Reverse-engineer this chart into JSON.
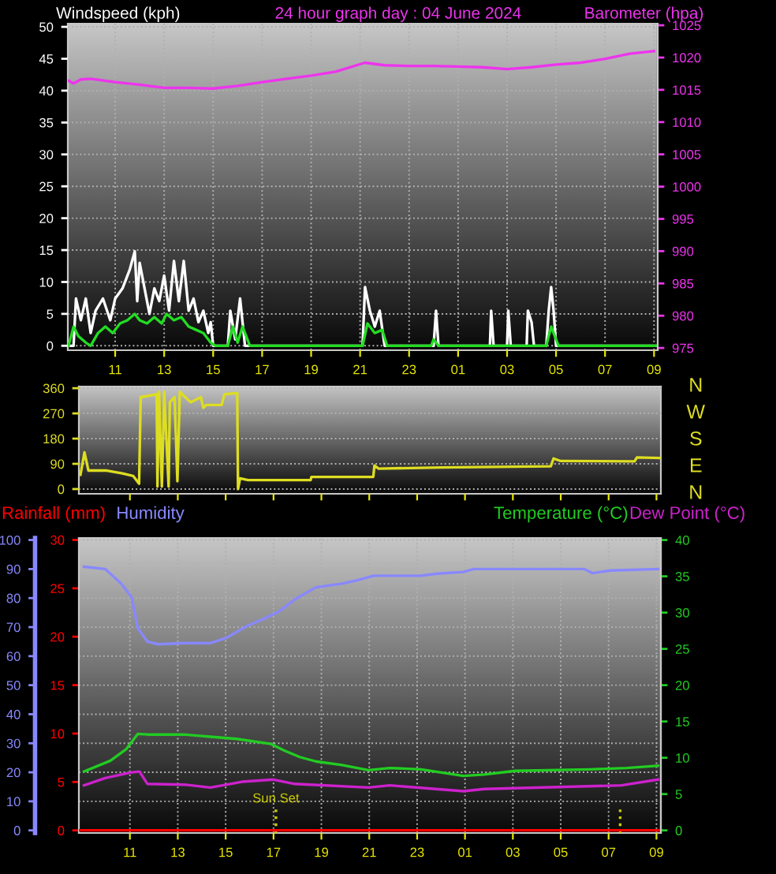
{
  "chart_data": [
    {
      "type": "line",
      "title": "24 hour graph day : 04 June 2024",
      "ylabel": "Windspeed (kph)",
      "y2label": "Barometer (hpa)",
      "xlim": [
        "2024-06-04T09:04",
        "2024-06-05T09:09"
      ],
      "xticks": [
        {
          "value": "2024-06-04T11:00",
          "label": "11"
        },
        {
          "value": "2024-06-04T13:00",
          "label": "13"
        },
        {
          "value": "2024-06-04T15:00",
          "label": "15"
        },
        {
          "value": "2024-06-04T17:00",
          "label": "17"
        },
        {
          "value": "2024-06-04T19:00",
          "label": "19"
        },
        {
          "value": "2024-06-04T21:00",
          "label": "21"
        },
        {
          "value": "2024-06-04T23:00",
          "label": "23"
        },
        {
          "value": "2024-06-05T01:00",
          "label": "01"
        },
        {
          "value": "2024-06-05T03:00",
          "label": "03"
        },
        {
          "value": "2024-06-05T05:00",
          "label": "05"
        },
        {
          "value": "2024-06-05T07:00",
          "label": "07"
        },
        {
          "value": "2024-06-05T09:00",
          "label": "09"
        }
      ],
      "ylim": [
        -0.7,
        50.5
      ],
      "yticks": [
        0,
        5,
        10,
        15,
        20,
        25,
        30,
        35,
        40,
        45,
        50
      ],
      "y2lim": [
        974.65,
        1025.25
      ],
      "y2ticks": [
        975,
        980,
        985,
        990,
        995,
        1000,
        1005,
        1010,
        1015,
        1020,
        1025
      ],
      "grid": true,
      "series": [
        {
          "color": "#ffffff",
          "x": [
            "2024-06-04T09:06",
            "2024-06-04T09:18",
            "2024-06-04T09:24",
            "2024-06-04T09:36",
            "2024-06-04T09:48",
            "2024-06-04T10:00",
            "2024-06-04T10:12",
            "2024-06-04T10:30",
            "2024-06-04T10:48",
            "2024-06-04T11:00",
            "2024-06-04T11:18",
            "2024-06-04T11:36",
            "2024-06-04T11:48",
            "2024-06-04T11:54",
            "2024-06-04T12:00",
            "2024-06-04T12:12",
            "2024-06-04T12:24",
            "2024-06-04T12:36",
            "2024-06-04T12:48",
            "2024-06-04T13:00",
            "2024-06-04T13:12",
            "2024-06-04T13:24",
            "2024-06-04T13:36",
            "2024-06-04T13:48",
            "2024-06-04T14:00",
            "2024-06-04T14:12",
            "2024-06-04T14:24",
            "2024-06-04T14:36",
            "2024-06-04T14:48",
            "2024-06-04T14:54",
            "2024-06-04T15:00",
            "2024-06-04T15:36",
            "2024-06-04T15:42",
            "2024-06-04T15:54",
            "2024-06-04T16:06",
            "2024-06-04T16:18",
            "2024-06-04T21:06",
            "2024-06-04T21:12",
            "2024-06-04T21:24",
            "2024-06-04T21:36",
            "2024-06-04T21:48",
            "2024-06-04T22:00",
            "2024-06-05T00:00",
            "2024-06-05T00:06",
            "2024-06-05T00:12",
            "2024-06-05T02:18",
            "2024-06-05T02:21",
            "2024-06-05T02:27",
            "2024-06-05T03:00",
            "2024-06-05T03:03",
            "2024-06-05T03:09",
            "2024-06-05T03:48",
            "2024-06-05T03:51",
            "2024-06-05T04:00",
            "2024-06-05T04:06",
            "2024-06-05T04:36",
            "2024-06-05T04:42",
            "2024-06-05T04:48",
            "2024-06-05T04:54",
            "2024-06-05T05:00",
            "2024-06-05T09:06"
          ],
          "values": [
            0,
            0,
            7.4,
            4,
            7.4,
            2,
            5.5,
            7.4,
            4,
            7.4,
            9,
            12,
            14.8,
            7,
            13,
            9,
            5,
            9,
            7,
            11,
            5.5,
            13.3,
            7,
            13.3,
            5.5,
            7.4,
            3.7,
            5.5,
            2,
            3.7,
            0,
            0,
            5.5,
            1,
            7.4,
            0,
            0,
            9.2,
            5.5,
            3,
            5.5,
            0,
            0,
            5.5,
            0,
            0,
            5.5,
            0,
            0,
            5.5,
            0,
            0,
            5.5,
            3.7,
            0,
            0,
            5.5,
            9.2,
            5.5,
            0,
            0
          ]
        },
        {
          "color": "#22dd22",
          "x": [
            "2024-06-04T09:06",
            "2024-06-04T09:18",
            "2024-06-04T09:30",
            "2024-06-04T09:48",
            "2024-06-04T10:00",
            "2024-06-04T10:18",
            "2024-06-04T10:36",
            "2024-06-04T10:54",
            "2024-06-04T11:12",
            "2024-06-04T11:30",
            "2024-06-04T11:48",
            "2024-06-04T12:00",
            "2024-06-04T12:18",
            "2024-06-04T12:36",
            "2024-06-04T12:54",
            "2024-06-04T13:06",
            "2024-06-04T13:24",
            "2024-06-04T13:42",
            "2024-06-04T14:00",
            "2024-06-04T14:18",
            "2024-06-04T14:36",
            "2024-06-04T14:54",
            "2024-06-04T15:06",
            "2024-06-04T15:36",
            "2024-06-04T15:48",
            "2024-06-04T16:00",
            "2024-06-04T16:12",
            "2024-06-04T16:30",
            "2024-06-04T21:06",
            "2024-06-04T21:18",
            "2024-06-04T21:36",
            "2024-06-04T21:54",
            "2024-06-04T22:06",
            "2024-06-04T23:54",
            "2024-06-05T00:00",
            "2024-06-05T00:12",
            "2024-06-05T04:36",
            "2024-06-05T04:48",
            "2024-06-05T05:00",
            "2024-06-05T05:06",
            "2024-06-05T09:06"
          ],
          "values": [
            0,
            3,
            1.5,
            0.5,
            0,
            2,
            3,
            2,
            3.5,
            4,
            5,
            4,
            3.5,
            4.5,
            3.5,
            5,
            4,
            4.5,
            3,
            2.5,
            2,
            0.5,
            0,
            0,
            3,
            0.5,
            3,
            0,
            0,
            3.5,
            2,
            2.5,
            0,
            0,
            1,
            0,
            0,
            3,
            1,
            0,
            0
          ]
        },
        {
          "color": "#ee33ee",
          "axis": "y2",
          "x": [
            "2024-06-04T09:06",
            "2024-06-04T09:18",
            "2024-06-04T09:36",
            "2024-06-04T10:00",
            "2024-06-04T11:00",
            "2024-06-04T12:00",
            "2024-06-04T13:00",
            "2024-06-04T14:00",
            "2024-06-04T15:00",
            "2024-06-04T16:00",
            "2024-06-04T17:00",
            "2024-06-04T18:00",
            "2024-06-04T19:00",
            "2024-06-04T20:00",
            "2024-06-04T21:12",
            "2024-06-04T22:00",
            "2024-06-04T23:00",
            "2024-06-05T00:00",
            "2024-06-05T01:00",
            "2024-06-05T02:00",
            "2024-06-05T03:00",
            "2024-06-05T04:00",
            "2024-06-05T05:00",
            "2024-06-05T06:00",
            "2024-06-05T07:00",
            "2024-06-05T08:00",
            "2024-06-05T09:00"
          ],
          "values": [
            1016.4,
            1016.0,
            1016.6,
            1016.7,
            1016.2,
            1015.8,
            1015.3,
            1015.3,
            1015.2,
            1015.6,
            1016.2,
            1016.7,
            1017.2,
            1017.8,
            1019.2,
            1018.8,
            1018.7,
            1018.7,
            1018.6,
            1018.5,
            1018.2,
            1018.5,
            1018.9,
            1019.2,
            1019.8,
            1020.6,
            1021.0
          ]
        }
      ]
    },
    {
      "type": "line",
      "xlim": [
        "2024-06-04T08:52",
        "2024-06-05T09:11"
      ],
      "xticks": [
        {
          "value": "2024-06-04T11:00",
          "label": null
        },
        {
          "value": "2024-06-04T13:00",
          "label": null
        },
        {
          "value": "2024-06-04T15:00",
          "label": null
        },
        {
          "value": "2024-06-04T17:00",
          "label": null
        },
        {
          "value": "2024-06-04T19:00",
          "label": null
        },
        {
          "value": "2024-06-04T21:00",
          "label": null
        },
        {
          "value": "2024-06-04T23:00",
          "label": null
        },
        {
          "value": "2024-06-05T01:00",
          "label": null
        },
        {
          "value": "2024-06-05T03:00",
          "label": null
        },
        {
          "value": "2024-06-05T05:00",
          "label": null
        },
        {
          "value": "2024-06-05T07:00",
          "label": null
        },
        {
          "value": "2024-06-05T09:00",
          "label": null
        }
      ],
      "tick_labels": "y",
      "ylim": [
        -17,
        366
      ],
      "yticks": [
        0,
        90,
        180,
        270,
        360
      ],
      "grid": "y",
      "annotations": [
        "N",
        "W",
        "S",
        "E",
        "N"
      ],
      "series": [
        {
          "color": "#dddd22",
          "x": [
            "2024-06-04T08:56",
            "2024-06-04T09:06",
            "2024-06-04T09:16",
            "2024-06-04T10:02",
            "2024-06-04T10:41",
            "2024-06-04T11:08",
            "2024-06-04T11:23",
            "2024-06-04T11:27",
            "2024-06-04T12:07",
            "2024-06-04T12:09",
            "2024-06-04T12:13",
            "2024-06-04T12:20",
            "2024-06-04T12:26",
            "2024-06-04T12:37",
            "2024-06-04T12:40",
            "2024-06-04T12:52",
            "2024-06-04T12:59",
            "2024-06-04T13:05",
            "2024-06-04T13:32",
            "2024-06-04T13:58",
            "2024-06-04T14:04",
            "2024-06-04T14:11",
            "2024-06-04T14:50",
            "2024-06-04T14:57",
            "2024-06-04T15:29",
            "2024-06-04T15:31",
            "2024-06-04T15:36",
            "2024-06-04T15:56",
            "2024-06-04T18:33",
            "2024-06-04T18:35",
            "2024-06-04T21:10",
            "2024-06-04T21:13",
            "2024-06-04T21:23",
            "2024-06-05T00:01",
            "2024-06-05T04:35",
            "2024-06-05T04:42",
            "2024-06-05T05:00",
            "2024-06-05T08:05",
            "2024-06-05T08:11",
            "2024-06-05T08:30",
            "2024-06-05T09:09"
          ],
          "values": [
            51,
            131,
            66,
            66,
            56,
            47,
            19,
            328,
            338,
            9,
            347,
            9,
            347,
            9,
            310,
            328,
            28,
            347,
            310,
            328,
            290,
            300,
            300,
            338,
            343,
            0,
            38,
            32,
            32,
            43,
            43,
            84,
            73,
            77,
            81,
            109,
            100,
            99,
            113,
            112,
            111
          ]
        }
      ]
    },
    {
      "type": "line",
      "xlim": [
        "2024-06-04T08:52",
        "2024-06-05T09:11"
      ],
      "xticks": [
        {
          "value": "2024-06-04T11:00",
          "label": "11"
        },
        {
          "value": "2024-06-04T13:00",
          "label": "13"
        },
        {
          "value": "2024-06-04T15:00",
          "label": "15"
        },
        {
          "value": "2024-06-04T17:00",
          "label": "17"
        },
        {
          "value": "2024-06-04T19:00",
          "label": "19"
        },
        {
          "value": "2024-06-04T21:00",
          "label": "21"
        },
        {
          "value": "2024-06-04T23:00",
          "label": "23"
        },
        {
          "value": "2024-06-05T01:00",
          "label": "01"
        },
        {
          "value": "2024-06-05T03:00",
          "label": "03"
        },
        {
          "value": "2024-06-05T05:00",
          "label": "05"
        },
        {
          "value": "2024-06-05T07:00",
          "label": "07"
        },
        {
          "value": "2024-06-05T09:00",
          "label": "09"
        }
      ],
      "ylim": [
        -0.9,
        100.7
      ],
      "yticks": [
        0,
        10,
        20,
        30,
        40,
        50,
        60,
        70,
        80,
        90,
        100
      ],
      "y2lim": [
        -0.27,
        30.2
      ],
      "y2ticks": [
        0,
        5,
        10,
        15,
        20,
        25,
        30
      ],
      "y3lim": [
        -0.36,
        40.28
      ],
      "y3ticks": [
        0,
        5,
        10,
        15,
        20,
        25,
        30,
        35,
        40
      ],
      "grid": true,
      "ref_lines": [
        {
          "axis": "x",
          "value": "2024-06-04T17:06",
          "label": "Sun Set",
          "color": "#cccc00",
          "line_style": "dotted"
        },
        {
          "axis": "x",
          "value": "2024-06-05T07:29",
          "color": "#cccc00",
          "line_style": "dotted"
        }
      ],
      "series": [
        {
          "name": "Rainfall (mm)",
          "color": "#ff0000",
          "axis": "y2",
          "x": [
            "2024-06-04T08:54",
            "2024-06-05T09:09"
          ],
          "values": [
            0,
            0
          ]
        },
        {
          "name": "Humidity",
          "color": "#8888ff",
          "x": [
            "2024-06-04T09:05",
            "2024-06-04T09:58",
            "2024-06-04T10:38",
            "2024-06-04T11:04",
            "2024-06-04T11:20",
            "2024-06-04T11:44",
            "2024-06-04T12:10",
            "2024-06-04T13:16",
            "2024-06-04T14:22",
            "2024-06-04T15:02",
            "2024-06-04T15:55",
            "2024-06-04T16:34",
            "2024-06-04T17:14",
            "2024-06-04T17:53",
            "2024-06-04T18:46",
            "2024-06-04T19:52",
            "2024-06-04T20:32",
            "2024-06-04T21:11",
            "2024-06-04T23:10",
            "2024-06-04T23:50",
            "2024-06-05T00:56",
            "2024-06-05T01:22",
            "2024-06-05T05:59",
            "2024-06-05T06:19",
            "2024-06-05T07:05",
            "2024-06-05T09:04"
          ],
          "values": [
            90.8,
            90,
            85,
            80.4,
            69.6,
            65,
            64.1,
            64.5,
            64.5,
            66.3,
            70.5,
            72.8,
            75.4,
            79.5,
            83.7,
            85,
            86.2,
            87.7,
            87.7,
            88.4,
            89,
            90,
            90,
            88.6,
            89.5,
            90
          ]
        },
        {
          "name": "Temperature (°C)",
          "color": "#22cc22",
          "axis": "y3",
          "x": [
            "2024-06-04T09:05",
            "2024-06-04T10:11",
            "2024-06-04T10:51",
            "2024-06-04T11:20",
            "2024-06-04T11:44",
            "2024-06-04T13:16",
            "2024-06-04T14:22",
            "2024-06-04T15:28",
            "2024-06-04T16:54",
            "2024-06-04T17:27",
            "2024-06-04T18:06",
            "2024-06-04T18:46",
            "2024-06-04T19:52",
            "2024-06-04T20:58",
            "2024-06-04T21:51",
            "2024-06-04T23:10",
            "2024-06-05T00:56",
            "2024-06-05T01:48",
            "2024-06-05T03:06",
            "2024-06-05T06:12",
            "2024-06-05T07:45",
            "2024-06-05T09:04"
          ],
          "values": [
            8.1,
            9.6,
            11.2,
            13.3,
            13.2,
            13.2,
            12.9,
            12.6,
            11.9,
            11.0,
            10.1,
            9.5,
            9.0,
            8.3,
            8.6,
            8.4,
            7.5,
            7.7,
            8.2,
            8.4,
            8.6,
            8.9
          ]
        },
        {
          "name": "Dew Point (°C)",
          "color": "#cc22cc",
          "axis": "y3",
          "x": [
            "2024-06-04T09:05",
            "2024-06-04T09:58",
            "2024-06-04T11:04",
            "2024-06-04T11:24",
            "2024-06-04T11:44",
            "2024-06-04T13:16",
            "2024-06-04T14:22",
            "2024-06-04T15:41",
            "2024-06-04T17:00",
            "2024-06-04T17:53",
            "2024-06-04T20:58",
            "2024-06-04T21:51",
            "2024-06-05T00:56",
            "2024-06-05T01:48",
            "2024-06-05T07:32",
            "2024-06-05T09:04"
          ],
          "values": [
            6.2,
            7.2,
            8.0,
            8.1,
            6.4,
            6.3,
            5.9,
            6.7,
            7.0,
            6.4,
            5.9,
            6.2,
            5.4,
            5.7,
            6.2,
            7.0
          ]
        }
      ]
    }
  ]
}
